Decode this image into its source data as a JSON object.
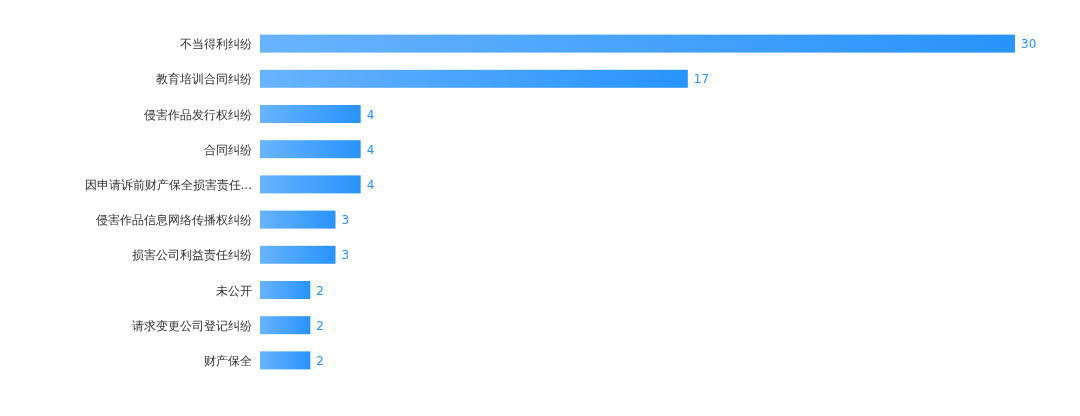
{
  "chart_data": {
    "type": "bar",
    "orientation": "horizontal",
    "categories": [
      "不当得利纠纷",
      "教育培训合同纠纷",
      "侵害作品发行权纠纷",
      "合同纠纷",
      "因申请诉前财产保全损害责任...",
      "侵害作品信息网络传播权纠纷",
      "损害公司利益责任纠纷",
      "未公开",
      "请求变更公司登记纠纷",
      "财产保全"
    ],
    "values": [
      30,
      17,
      4,
      4,
      4,
      3,
      3,
      2,
      2,
      2
    ],
    "color": "#2893fb",
    "data_labels": true
  }
}
